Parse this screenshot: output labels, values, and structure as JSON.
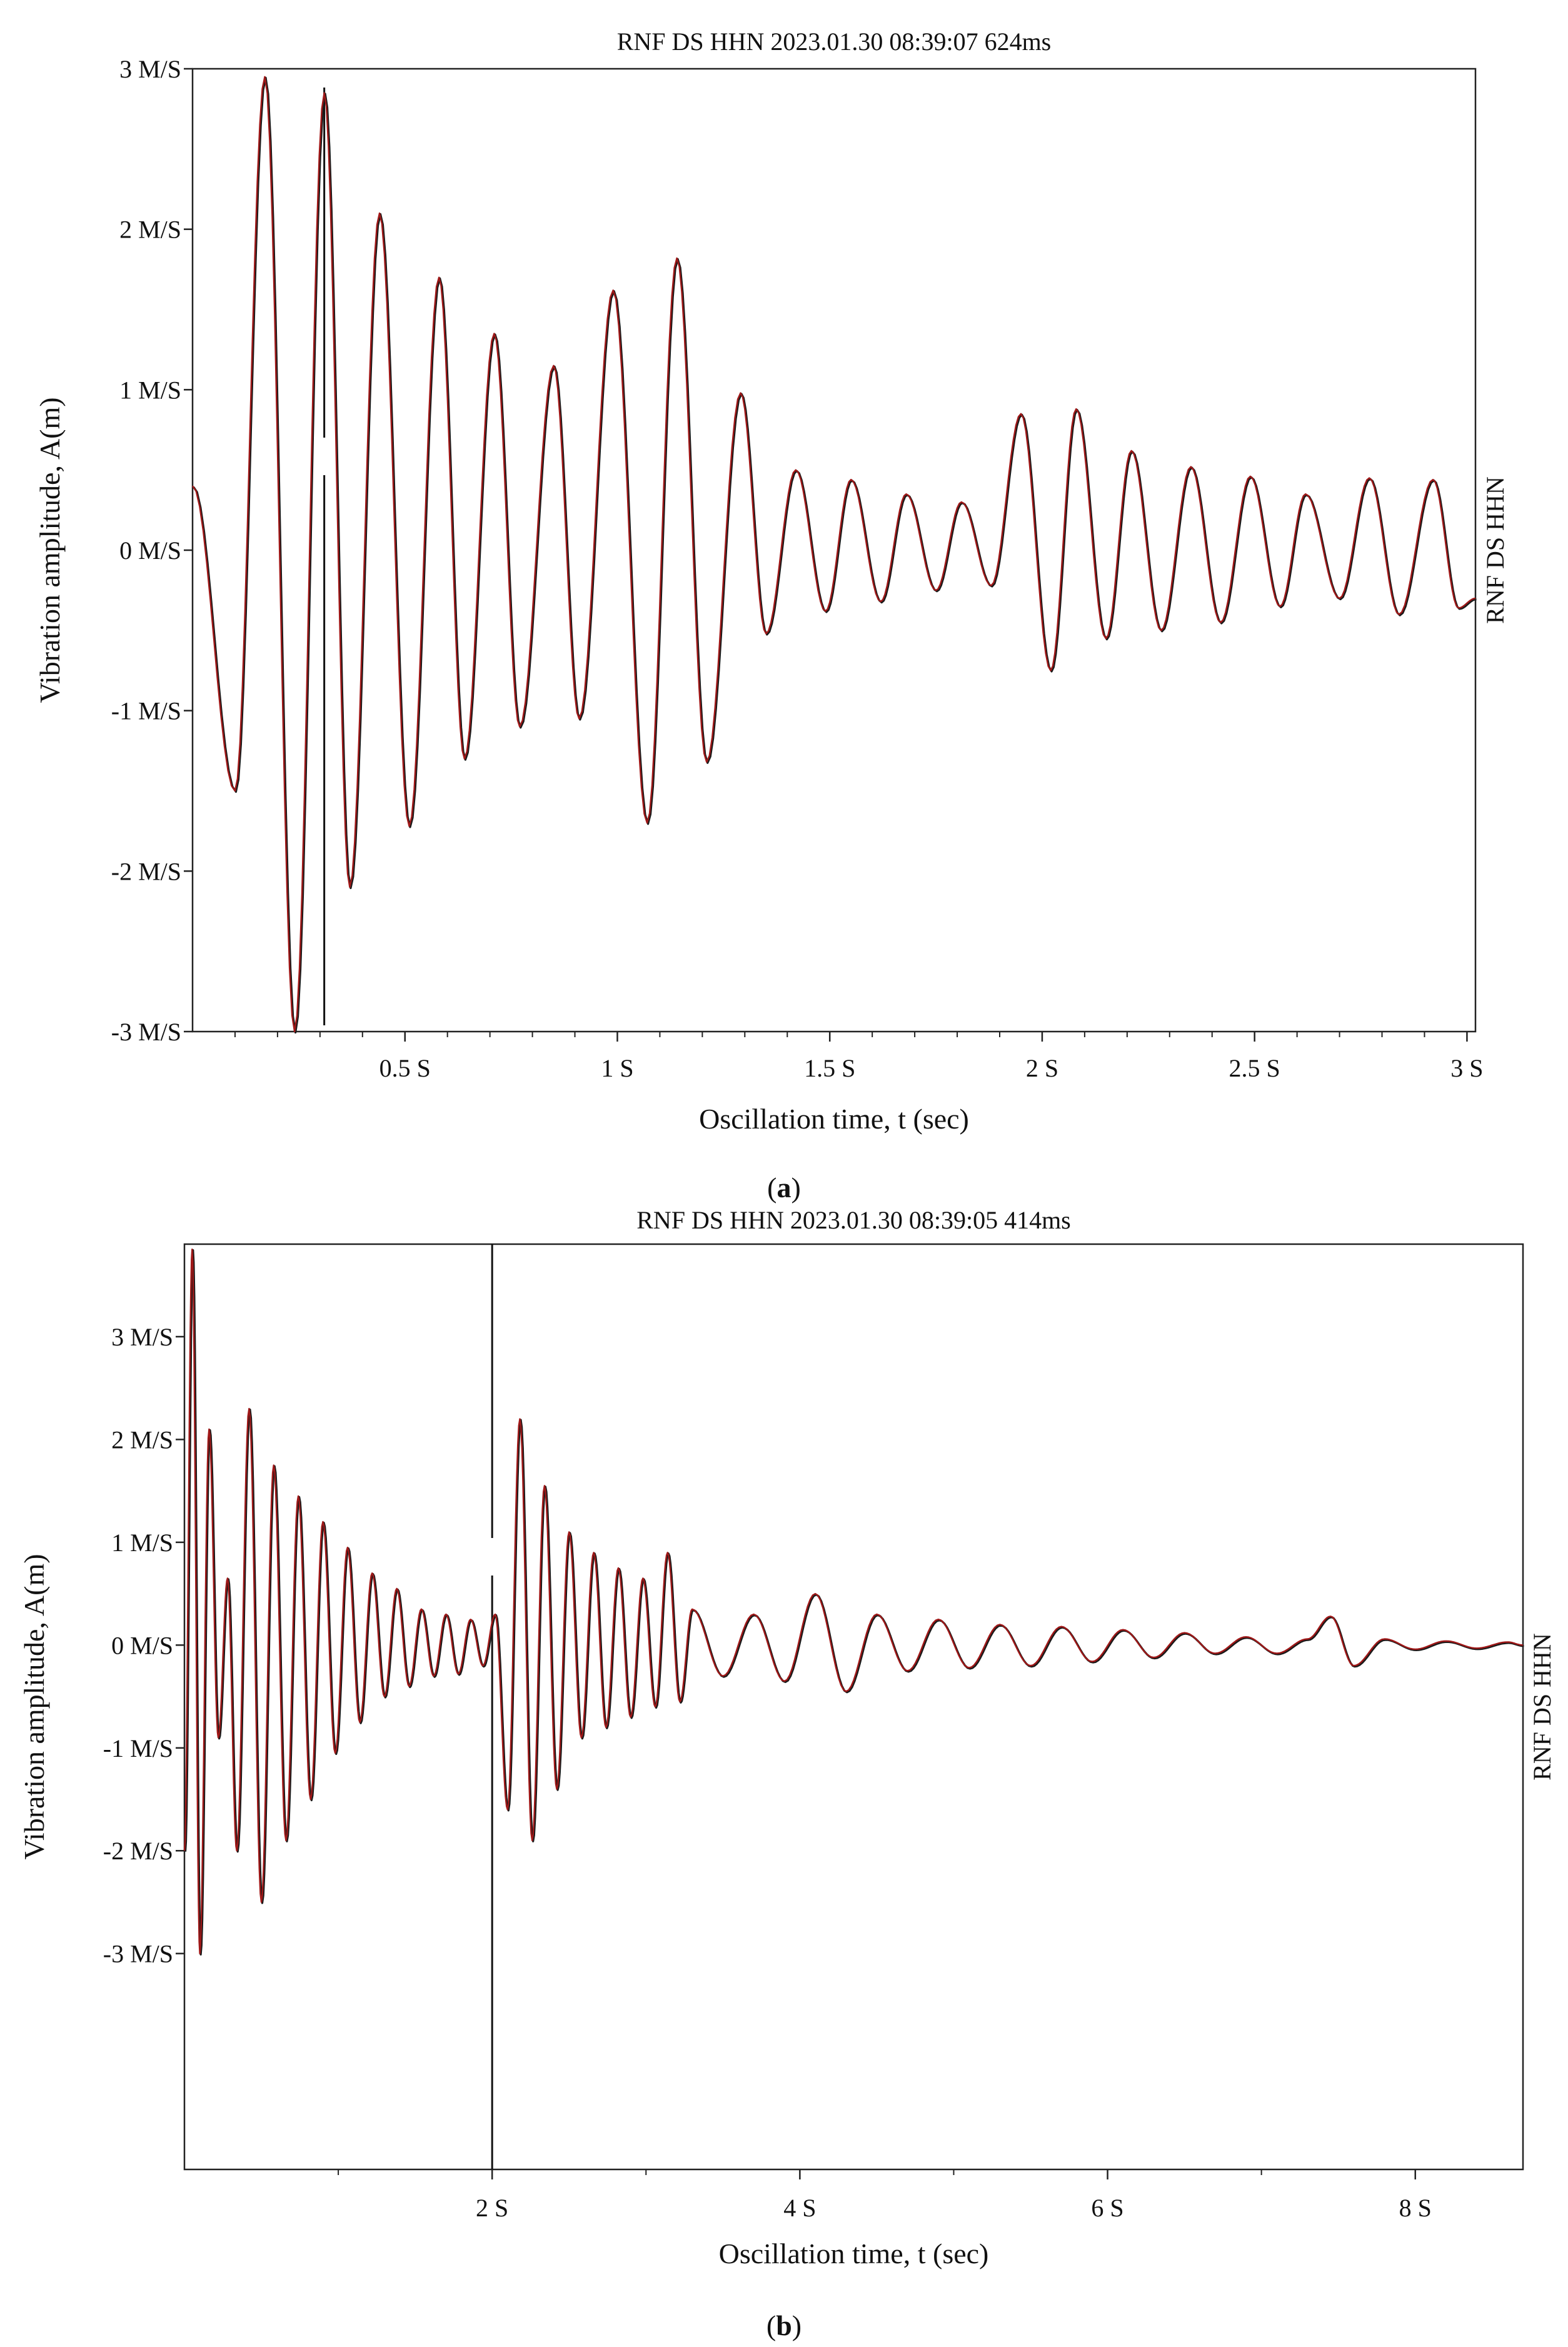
{
  "colors": {
    "trace": "#a01818",
    "trace_shadow": "#1a1a1a",
    "axis": "#222222",
    "background": "#ffffff"
  },
  "panels": [
    {
      "caption": "(a)",
      "caption_letter": "a"
    },
    {
      "caption": "(b)",
      "caption_letter": "b"
    }
  ],
  "chart_data": [
    {
      "type": "line",
      "title": "RNF DS HHN 2023.01.30 08:39:07 624ms",
      "xlabel": "Oscillation time, t (sec)",
      "ylabel": "Vibration amplitude, A(m)",
      "right_label": "RNF DS HHN",
      "xlim": [
        0,
        3.02
      ],
      "ylim": [
        -3,
        3
      ],
      "x_ticks": [
        {
          "value": 0.5,
          "label": "0.5 S"
        },
        {
          "value": 1,
          "label": "1 S"
        },
        {
          "value": 1.5,
          "label": "1.5 S"
        },
        {
          "value": 2,
          "label": "2 S"
        },
        {
          "value": 2.5,
          "label": "2.5 S"
        },
        {
          "value": 3,
          "label": "3 S"
        }
      ],
      "x_minor_ticks": [
        0.1,
        0.2,
        0.3,
        0.4,
        0.6,
        0.7,
        0.8,
        0.9,
        1.1,
        1.2,
        1.3,
        1.4,
        1.6,
        1.7,
        1.8,
        1.9,
        2.1,
        2.2,
        2.3,
        2.4,
        2.6,
        2.7,
        2.8,
        2.9
      ],
      "y_ticks": [
        {
          "value": 3,
          "label": "3 M/S"
        },
        {
          "value": 2,
          "label": "2 M/S"
        },
        {
          "value": 1,
          "label": "1 M/S"
        },
        {
          "value": 0,
          "label": "0 M/S"
        },
        {
          "value": -1,
          "label": "-1 M/S"
        },
        {
          "value": -2,
          "label": "-2 M/S"
        },
        {
          "value": -3,
          "label": "-3 M/S"
        }
      ],
      "marker_x": 0.31,
      "grid": false,
      "series": [
        {
          "x": [
            0,
            0.1,
            0.17,
            0.24,
            0.31,
            0.37,
            0.44,
            0.51,
            0.58,
            0.64,
            0.71,
            0.77,
            0.85,
            0.91,
            0.99,
            1.07,
            1.14,
            1.21,
            1.29,
            1.35,
            1.42,
            1.49,
            1.55,
            1.62,
            1.68,
            1.75,
            1.81,
            1.88,
            1.95,
            2.02,
            2.08,
            2.15,
            2.21,
            2.28,
            2.35,
            2.42,
            2.49,
            2.56,
            2.62,
            2.7,
            2.77,
            2.84,
            2.92,
            2.98,
            3.02
          ],
          "y": [
            0.4,
            -1.5,
            2.95,
            -3.0,
            2.85,
            -2.1,
            2.1,
            -1.72,
            1.7,
            -1.3,
            1.35,
            -1.1,
            1.15,
            -1.05,
            1.62,
            -1.7,
            1.82,
            -1.32,
            0.98,
            -0.52,
            0.5,
            -0.38,
            0.44,
            -0.32,
            0.35,
            -0.25,
            0.3,
            -0.22,
            0.85,
            -0.75,
            0.88,
            -0.55,
            0.62,
            -0.5,
            0.52,
            -0.45,
            0.46,
            -0.35,
            0.35,
            -0.3,
            0.45,
            -0.4,
            0.44,
            -0.36,
            -0.3
          ]
        }
      ]
    },
    {
      "type": "line",
      "title": "RNF DS HHN 2023.01.30 08:39:05 414ms",
      "xlabel": "Oscillation time, t (sec)",
      "ylabel": "Vibration amplitude, A(m)",
      "right_label": "RNF DS HHN",
      "xlim": [
        0,
        8.7
      ],
      "ylim": [
        -5.1,
        3.9
      ],
      "x_ticks": [
        {
          "value": 2,
          "label": "2 S"
        },
        {
          "value": 4,
          "label": "4 S"
        },
        {
          "value": 6,
          "label": "6 S"
        },
        {
          "value": 8,
          "label": "8 S"
        }
      ],
      "x_minor_ticks": [
        1,
        3,
        5,
        7
      ],
      "y_ticks": [
        {
          "value": 3,
          "label": "3 M/S"
        },
        {
          "value": 2,
          "label": "2 M/S"
        },
        {
          "value": 1,
          "label": "1 M/S"
        },
        {
          "value": 0,
          "label": "0 M/S"
        },
        {
          "value": -1,
          "label": "-1 M/S"
        },
        {
          "value": -2,
          "label": "-2 M/S"
        },
        {
          "value": -3,
          "label": "-3 M/S"
        }
      ],
      "marker_x": 2,
      "grid": false,
      "series": [
        {
          "x": [
            0,
            0.05,
            0.1,
            0.16,
            0.22,
            0.28,
            0.34,
            0.42,
            0.5,
            0.58,
            0.66,
            0.74,
            0.82,
            0.9,
            0.98,
            1.06,
            1.14,
            1.22,
            1.3,
            1.38,
            1.46,
            1.54,
            1.62,
            1.7,
            1.78,
            1.86,
            1.94,
            2.02,
            2.1,
            2.18,
            2.26,
            2.34,
            2.42,
            2.5,
            2.58,
            2.66,
            2.74,
            2.82,
            2.9,
            2.98,
            3.06,
            3.14,
            3.22,
            3.3,
            3.5,
            3.7,
            3.9,
            4.1,
            4.3,
            4.5,
            4.7,
            4.9,
            5.1,
            5.3,
            5.5,
            5.7,
            5.9,
            6.1,
            6.3,
            6.5,
            6.7,
            6.9,
            7.1,
            7.3,
            7.45,
            7.6,
            7.8,
            8.0,
            8.2,
            8.4,
            8.6,
            8.7
          ],
          "y": [
            -2.0,
            3.85,
            -3.0,
            2.1,
            -0.9,
            0.65,
            -2.0,
            2.3,
            -2.5,
            1.75,
            -1.9,
            1.45,
            -1.5,
            1.2,
            -1.05,
            0.95,
            -0.75,
            0.7,
            -0.5,
            0.55,
            -0.4,
            0.35,
            -0.3,
            0.3,
            -0.28,
            0.25,
            -0.2,
            0.3,
            -1.6,
            2.2,
            -1.9,
            1.55,
            -1.4,
            1.1,
            -0.9,
            0.9,
            -0.8,
            0.75,
            -0.7,
            0.65,
            -0.6,
            0.9,
            -0.55,
            0.35,
            -0.3,
            0.3,
            -0.35,
            0.5,
            -0.45,
            0.3,
            -0.25,
            0.25,
            -0.22,
            0.2,
            -0.2,
            0.18,
            -0.16,
            0.15,
            -0.12,
            0.12,
            -0.08,
            0.08,
            -0.08,
            0.06,
            0.28,
            -0.2,
            0.06,
            -0.04,
            0.04,
            -0.03,
            0.03,
            0.0
          ]
        }
      ]
    }
  ]
}
